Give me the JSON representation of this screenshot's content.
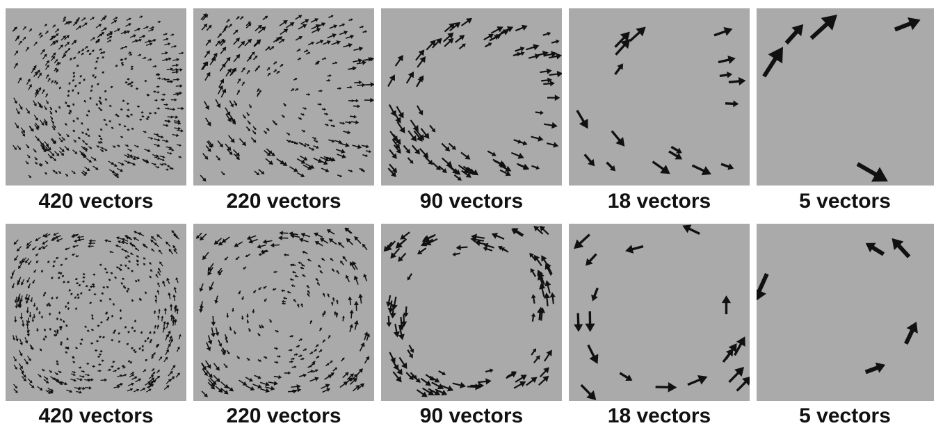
{
  "colors": {
    "panel_bg": "#aaaaaa",
    "arrow": "#111111",
    "page_bg": "#ffffff"
  },
  "row1": {
    "field": "expanding-field",
    "captions": [
      "420 vectors",
      "220 vectors",
      "90 vectors",
      "18 vectors",
      "5 vectors"
    ],
    "vector_counts": [
      420,
      220,
      90,
      18,
      5
    ]
  },
  "row2": {
    "field": "rotating-field",
    "captions": [
      "420 vectors",
      "220 vectors",
      "90 vectors",
      "18 vectors",
      "5 vectors"
    ],
    "vector_counts": [
      420,
      220,
      90,
      18,
      5
    ]
  }
}
